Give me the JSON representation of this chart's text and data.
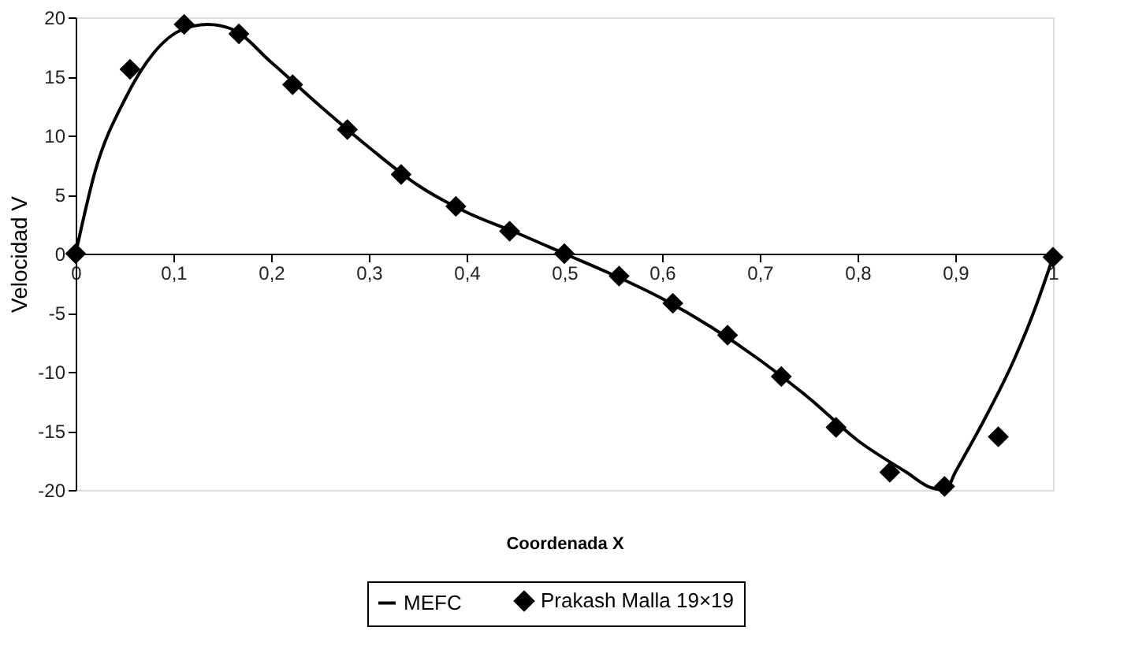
{
  "chart_data": {
    "type": "line",
    "xlabel": "Coordenada X",
    "ylabel": "Velocidad V",
    "xlim": [
      0,
      1
    ],
    "ylim": [
      -20,
      20
    ],
    "xticks": [
      0,
      {
        "value": 0.1,
        "label": "0,1"
      },
      {
        "value": 0.2,
        "label": "0,2"
      },
      {
        "value": 0.3,
        "label": "0,3"
      },
      {
        "value": 0.4,
        "label": "0,4"
      },
      {
        "value": 0.5,
        "label": "0,5"
      },
      {
        "value": 0.6,
        "label": "0,6"
      },
      {
        "value": 0.7,
        "label": "0,7"
      },
      {
        "value": 0.8,
        "label": "0,8"
      },
      {
        "value": 0.9,
        "label": "0,9"
      },
      1
    ],
    "yticks": [
      -20,
      -15,
      -10,
      -5,
      0,
      5,
      10,
      15,
      20
    ],
    "grid": false,
    "legend": "bottom",
    "series": [
      {
        "name": "MEFC",
        "color": "#000000",
        "line_style": "solid",
        "marker": "none",
        "x": [
          0,
          0.02,
          0.05,
          0.08,
          0.11,
          0.135,
          0.16,
          0.2,
          0.25,
          0.3,
          0.35,
          0.4,
          0.45,
          0.5,
          0.55,
          0.6,
          0.65,
          0.7,
          0.75,
          0.8,
          0.85,
          0.875,
          0.89,
          0.9,
          0.93,
          0.96,
          0.98,
          1
        ],
        "values": [
          0,
          7,
          13,
          17,
          19,
          19.4,
          19,
          16.2,
          12.5,
          9,
          5.8,
          3.5,
          1.8,
          0,
          -1.8,
          -3.8,
          -6.2,
          -9,
          -12.2,
          -15.8,
          -18.5,
          -19.8,
          -20,
          -18.5,
          -14,
          -9,
          -5,
          -0.3
        ]
      },
      {
        "name": "Prakash Malla 19×19",
        "type": "scatter",
        "color": "#000000",
        "marker": "diamond",
        "x": [
          0,
          0.0556,
          0.111,
          0.167,
          0.222,
          0.278,
          0.333,
          0.389,
          0.444,
          0.5,
          0.556,
          0.611,
          0.667,
          0.722,
          0.778,
          0.833,
          0.889,
          0.944,
          1
        ],
        "values": [
          0,
          15.6,
          19.4,
          18.6,
          14.3,
          10.5,
          6.7,
          4.0,
          1.9,
          0,
          -1.9,
          -4.2,
          -6.9,
          -10.4,
          -14.7,
          -18.5,
          -19.7,
          -15.5,
          -0.3
        ]
      }
    ]
  }
}
